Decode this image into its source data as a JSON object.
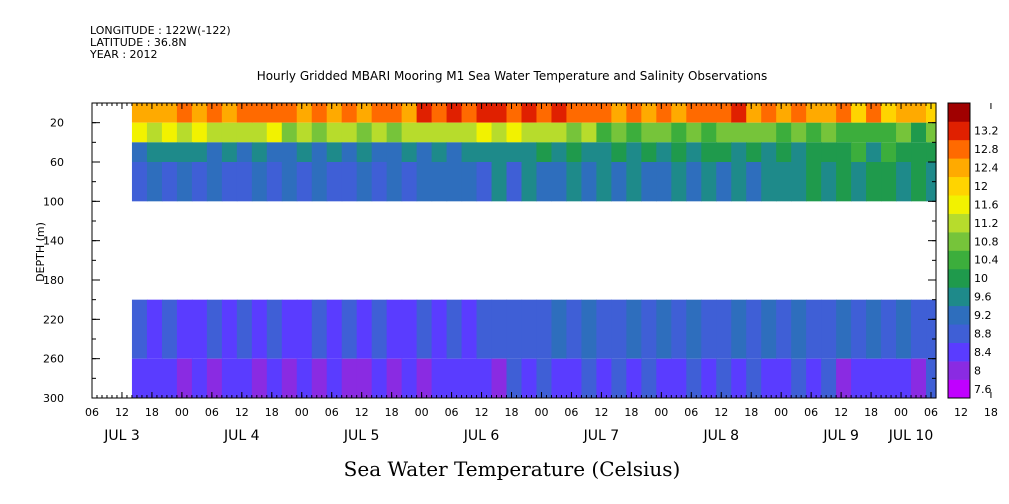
{
  "meta": {
    "longitude": "LONGITUDE : 122W(-122)",
    "latitude": "LATITUDE : 36.8N",
    "year": "YEAR : 2012"
  },
  "chart_data": {
    "type": "heatmap",
    "title": "Hourly Gridded MBARI Mooring M1 Sea Water Temperature and Salinity Observations",
    "bottom_title": "Sea Water Temperature (Celsius)",
    "ylabel": "DEPTH (m)",
    "xlabel": "",
    "ylim": [
      300,
      0
    ],
    "y_axis_inverted": true,
    "y_ticks": [
      "20",
      "60",
      "100",
      "140",
      "180",
      "220",
      "260",
      "300"
    ],
    "x_hour_ticks": [
      "06",
      "12",
      "18",
      "00",
      "06",
      "12",
      "18",
      "00",
      "06",
      "12",
      "18",
      "00",
      "06",
      "12",
      "18",
      "00",
      "06",
      "12",
      "18",
      "00",
      "06",
      "12",
      "18",
      "00",
      "06",
      "12",
      "18",
      "00",
      "06",
      "12",
      "18",
      "00",
      "06"
    ],
    "x_day_labels": [
      "JUL  3",
      "JUL  4",
      "JUL  5",
      "JUL  6",
      "JUL  7",
      "JUL  8",
      "JUL  9",
      "JUL 10"
    ],
    "x_range_hours": [
      "2012-07-03 06:00",
      "2012-07-10 07:00"
    ],
    "data_start": "2012-07-03 14:00",
    "data_gap_depth_range": [
      100,
      200
    ],
    "colorbar": {
      "levels": [
        "7.6",
        "8",
        "8.4",
        "8.8",
        "9.2",
        "9.6",
        "10",
        "10.4",
        "10.8",
        "11.2",
        "11.6",
        "12",
        "12.4",
        "12.8",
        "13.2"
      ],
      "colors": [
        "#c000ff",
        "#8a2be2",
        "#5a3cff",
        "#3f5fd6",
        "#2e6ebd",
        "#1e8a8a",
        "#1f9a4c",
        "#3cae3c",
        "#76c43a",
        "#b7dc2c",
        "#f2f200",
        "#ffd400",
        "#ffaa00",
        "#ff6a00",
        "#e02000",
        "#a00000"
      ]
    },
    "series": [
      {
        "depth_range": [
          0,
          20
        ],
        "values_celsius": [
          12.2,
          12.6,
          12.4,
          13.0,
          12.4,
          12.6,
          12.2,
          12.0
        ],
        "description_days": [
          "JUL 3",
          "JUL 4",
          "JUL 5",
          "JUL 6",
          "JUL 7",
          "JUL 8",
          "JUL 9",
          "JUL 10"
        ]
      },
      {
        "depth_range": [
          20,
          40
        ],
        "values_celsius": [
          11.4,
          11.0,
          10.8,
          11.2,
          10.4,
          10.6,
          10.2,
          10.2
        ]
      },
      {
        "depth_range": [
          40,
          60
        ],
        "values_celsius": [
          9.4,
          9.2,
          9.0,
          9.4,
          9.6,
          9.6,
          9.8,
          10.0
        ]
      },
      {
        "depth_range": [
          60,
          100
        ],
        "values_celsius": [
          8.8,
          8.8,
          8.8,
          9.0,
          9.2,
          9.2,
          9.6,
          9.6
        ]
      },
      {
        "depth_range": [
          200,
          260
        ],
        "values_celsius": [
          8.4,
          8.4,
          8.4,
          8.6,
          8.8,
          8.8,
          8.8,
          8.6
        ]
      },
      {
        "depth_range": [
          260,
          300
        ],
        "values_celsius": [
          8.2,
          8.0,
          8.0,
          8.2,
          8.4,
          8.4,
          8.2,
          8.2
        ]
      }
    ]
  }
}
